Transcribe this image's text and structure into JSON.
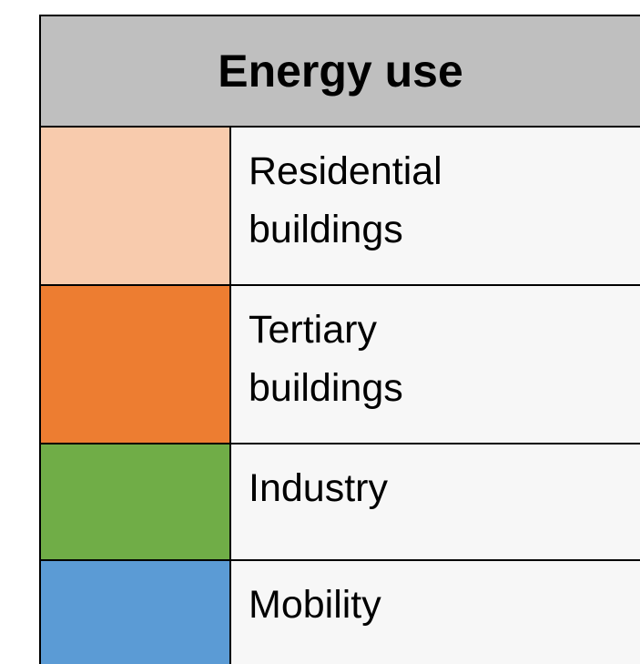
{
  "legend": {
    "title": "Energy use",
    "rows": [
      {
        "label": [
          "Residential",
          "buildings"
        ],
        "color": "#f8cbad"
      },
      {
        "label": [
          "Tertiary",
          "buildings"
        ],
        "color": "#ed7d31"
      },
      {
        "label": [
          "Industry"
        ],
        "color": "#70ad47"
      },
      {
        "label": [
          "Mobility"
        ],
        "color": "#5b9bd5"
      }
    ]
  }
}
